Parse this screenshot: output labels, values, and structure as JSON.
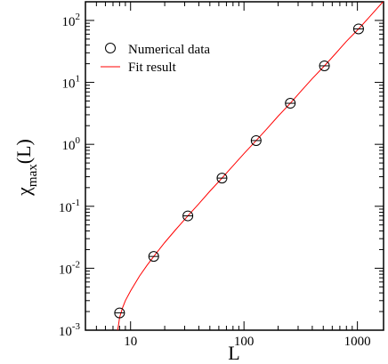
{
  "chart_data": {
    "type": "scatter",
    "x_scale": "log",
    "y_scale": "log",
    "xlim": [
      4,
      1700
    ],
    "ylim": [
      0.001,
      200
    ],
    "xlabel": "L",
    "ylabel_main": "χ",
    "ylabel_sub": "max",
    "ylabel_tail": "(L)",
    "x_ticks": [
      {
        "value": 10,
        "label": "10"
      },
      {
        "value": 100,
        "label": "100"
      },
      {
        "value": 1000,
        "label": "1000"
      }
    ],
    "y_ticks": [
      {
        "value": 0.001,
        "base": "10",
        "exp": "-3"
      },
      {
        "value": 0.01,
        "base": "10",
        "exp": "-2"
      },
      {
        "value": 0.1,
        "base": "10",
        "exp": "-1"
      },
      {
        "value": 1,
        "base": "10",
        "exp": "0"
      },
      {
        "value": 10,
        "base": "10",
        "exp": "1"
      },
      {
        "value": 100,
        "base": "10",
        "exp": "2"
      }
    ],
    "grid": false,
    "legend_position": "top-left",
    "series": [
      {
        "name": "Numerical data",
        "kind": "markers",
        "marker": "open-circle",
        "color": "#000000",
        "x": [
          8,
          16,
          32,
          64,
          128,
          256,
          512,
          1024
        ],
        "y": [
          0.0019,
          0.0155,
          0.07,
          0.285,
          1.15,
          4.6,
          18.5,
          73
        ]
      },
      {
        "name": "Fit result",
        "kind": "line",
        "color": "#ff0000",
        "x": [
          7.7,
          7.85,
          8,
          8.5,
          9,
          10,
          12,
          14,
          16,
          20,
          25,
          32,
          40,
          50,
          64,
          80,
          100,
          128,
          160,
          200,
          256,
          320,
          400,
          512,
          640,
          800,
          1024,
          1300,
          1680
        ],
        "y": [
          0.001,
          0.00125,
          0.0016,
          0.0023,
          0.003,
          0.0043,
          0.0075,
          0.0112,
          0.0155,
          0.026,
          0.042,
          0.07,
          0.11,
          0.175,
          0.285,
          0.45,
          0.71,
          1.15,
          1.8,
          2.85,
          4.6,
          7.3,
          11.5,
          18.5,
          29,
          46,
          73,
          118,
          200
        ]
      }
    ]
  }
}
